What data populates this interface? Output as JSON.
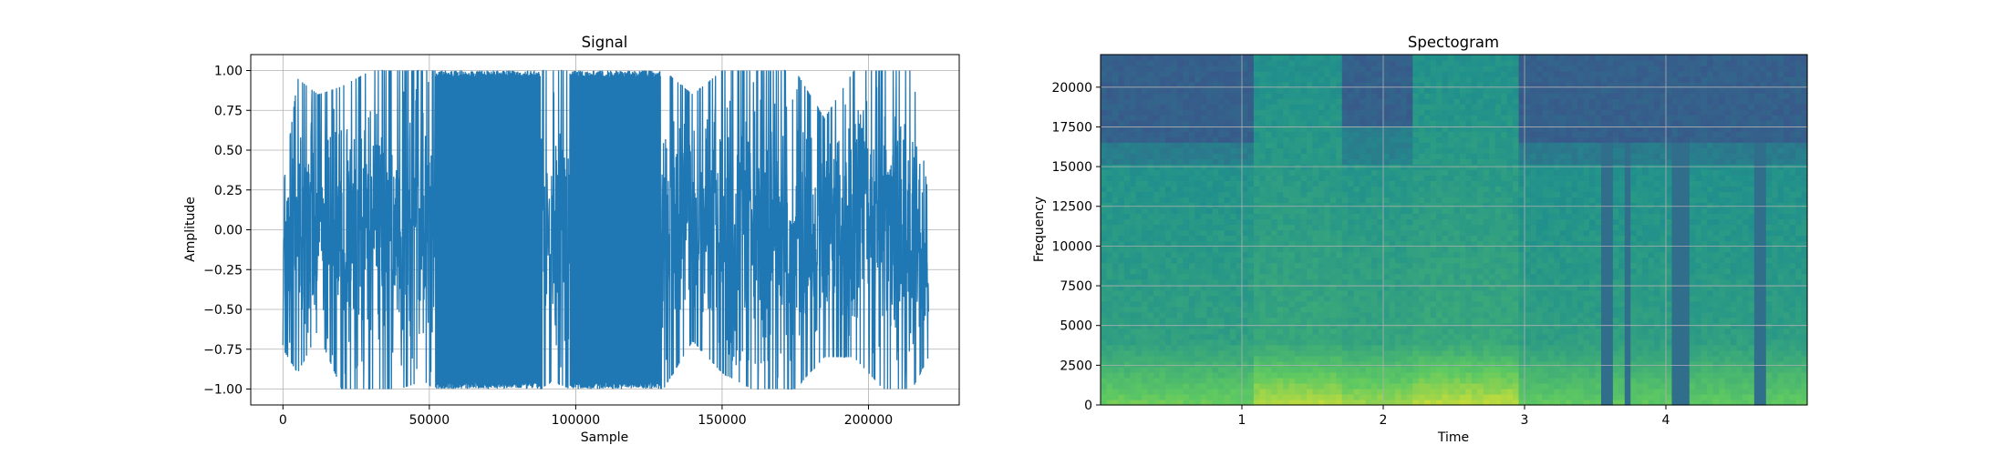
{
  "chart_data": [
    {
      "type": "line",
      "title": "Signal",
      "xlabel": "Sample",
      "ylabel": "Amplitude",
      "xlim": [
        -11000,
        231000
      ],
      "ylim": [
        -1.1,
        1.1
      ],
      "x_ticks": [
        0,
        50000,
        100000,
        150000,
        200000
      ],
      "x_tick_labels": [
        "0",
        "50000",
        "100000",
        "150000",
        "200000"
      ],
      "y_ticks": [
        -1.0,
        -0.75,
        -0.5,
        -0.25,
        0.0,
        0.25,
        0.5,
        0.75,
        1.0
      ],
      "y_tick_labels": [
        "−1.00",
        "−0.75",
        "−0.50",
        "−0.25",
        "0.00",
        "0.25",
        "0.50",
        "0.75",
        "1.00"
      ],
      "grid": true,
      "line_color": "#1f77b4",
      "series": [
        {
          "x_range": [
            0,
            220500
          ],
          "envelope": [
            {
              "x": 0,
              "min": -0.75,
              "max": 0.25
            },
            {
              "x": 5000,
              "min": -0.9,
              "max": 0.95
            },
            {
              "x": 12000,
              "min": -0.65,
              "max": 0.85
            },
            {
              "x": 20000,
              "min": -1.0,
              "max": 0.9
            },
            {
              "x": 30000,
              "min": -1.0,
              "max": 1.0
            },
            {
              "x": 40000,
              "min": -1.0,
              "max": 1.0
            },
            {
              "x": 48000,
              "min": -0.95,
              "max": 1.0
            },
            {
              "x": 52000,
              "min": -1.0,
              "max": 1.0
            },
            {
              "x": 88000,
              "min": -1.0,
              "max": 1.0
            },
            {
              "x": 92000,
              "min": -0.95,
              "max": 1.0
            },
            {
              "x": 98000,
              "min": -1.0,
              "max": 1.0
            },
            {
              "x": 130000,
              "min": -1.0,
              "max": 1.0
            },
            {
              "x": 140000,
              "min": -0.7,
              "max": 0.85
            },
            {
              "x": 150000,
              "min": -0.9,
              "max": 1.0
            },
            {
              "x": 160000,
              "min": -1.0,
              "max": 1.0
            },
            {
              "x": 175000,
              "min": -1.0,
              "max": 1.0
            },
            {
              "x": 185000,
              "min": -0.8,
              "max": 0.7
            },
            {
              "x": 195000,
              "min": -0.8,
              "max": 1.0
            },
            {
              "x": 205000,
              "min": -1.0,
              "max": 1.0
            },
            {
              "x": 215000,
              "min": -1.0,
              "max": 1.0
            },
            {
              "x": 220500,
              "min": -0.8,
              "max": 0.2
            }
          ]
        }
      ]
    },
    {
      "type": "heatmap",
      "title": "Spectogram",
      "xlabel": "Time",
      "ylabel": "Frequency",
      "xlim": [
        0,
        5.0
      ],
      "ylim": [
        0,
        22050
      ],
      "x_ticks": [
        1,
        2,
        3,
        4
      ],
      "x_tick_labels": [
        "1",
        "2",
        "3",
        "4"
      ],
      "y_ticks": [
        0,
        2500,
        5000,
        7500,
        10000,
        12500,
        15000,
        17500,
        20000
      ],
      "y_tick_labels": [
        "0",
        "2500",
        "5000",
        "7500",
        "10000",
        "12500",
        "15000",
        "17500",
        "20000"
      ],
      "grid": true,
      "colormap": "viridis",
      "colormap_colors": [
        "#440154",
        "#3b528b",
        "#21918c",
        "#5ec962",
        "#fde725"
      ],
      "time_segments": [
        {
          "t0": 0.0,
          "t1": 1.1,
          "cutoff": 16500,
          "loud": 0.55
        },
        {
          "t0": 1.1,
          "t1": 1.7,
          "cutoff": 22050,
          "loud": 0.8
        },
        {
          "t0": 1.7,
          "t1": 2.2,
          "cutoff": 17500,
          "loud": 0.7
        },
        {
          "t0": 2.2,
          "t1": 2.95,
          "cutoff": 22050,
          "loud": 0.82
        },
        {
          "t0": 2.95,
          "t1": 5.0,
          "cutoff": 16500,
          "loud": 0.5
        }
      ],
      "dark_lines": [
        3.55,
        3.62,
        3.73,
        4.05,
        4.1,
        4.15,
        4.65,
        4.7
      ]
    }
  ]
}
